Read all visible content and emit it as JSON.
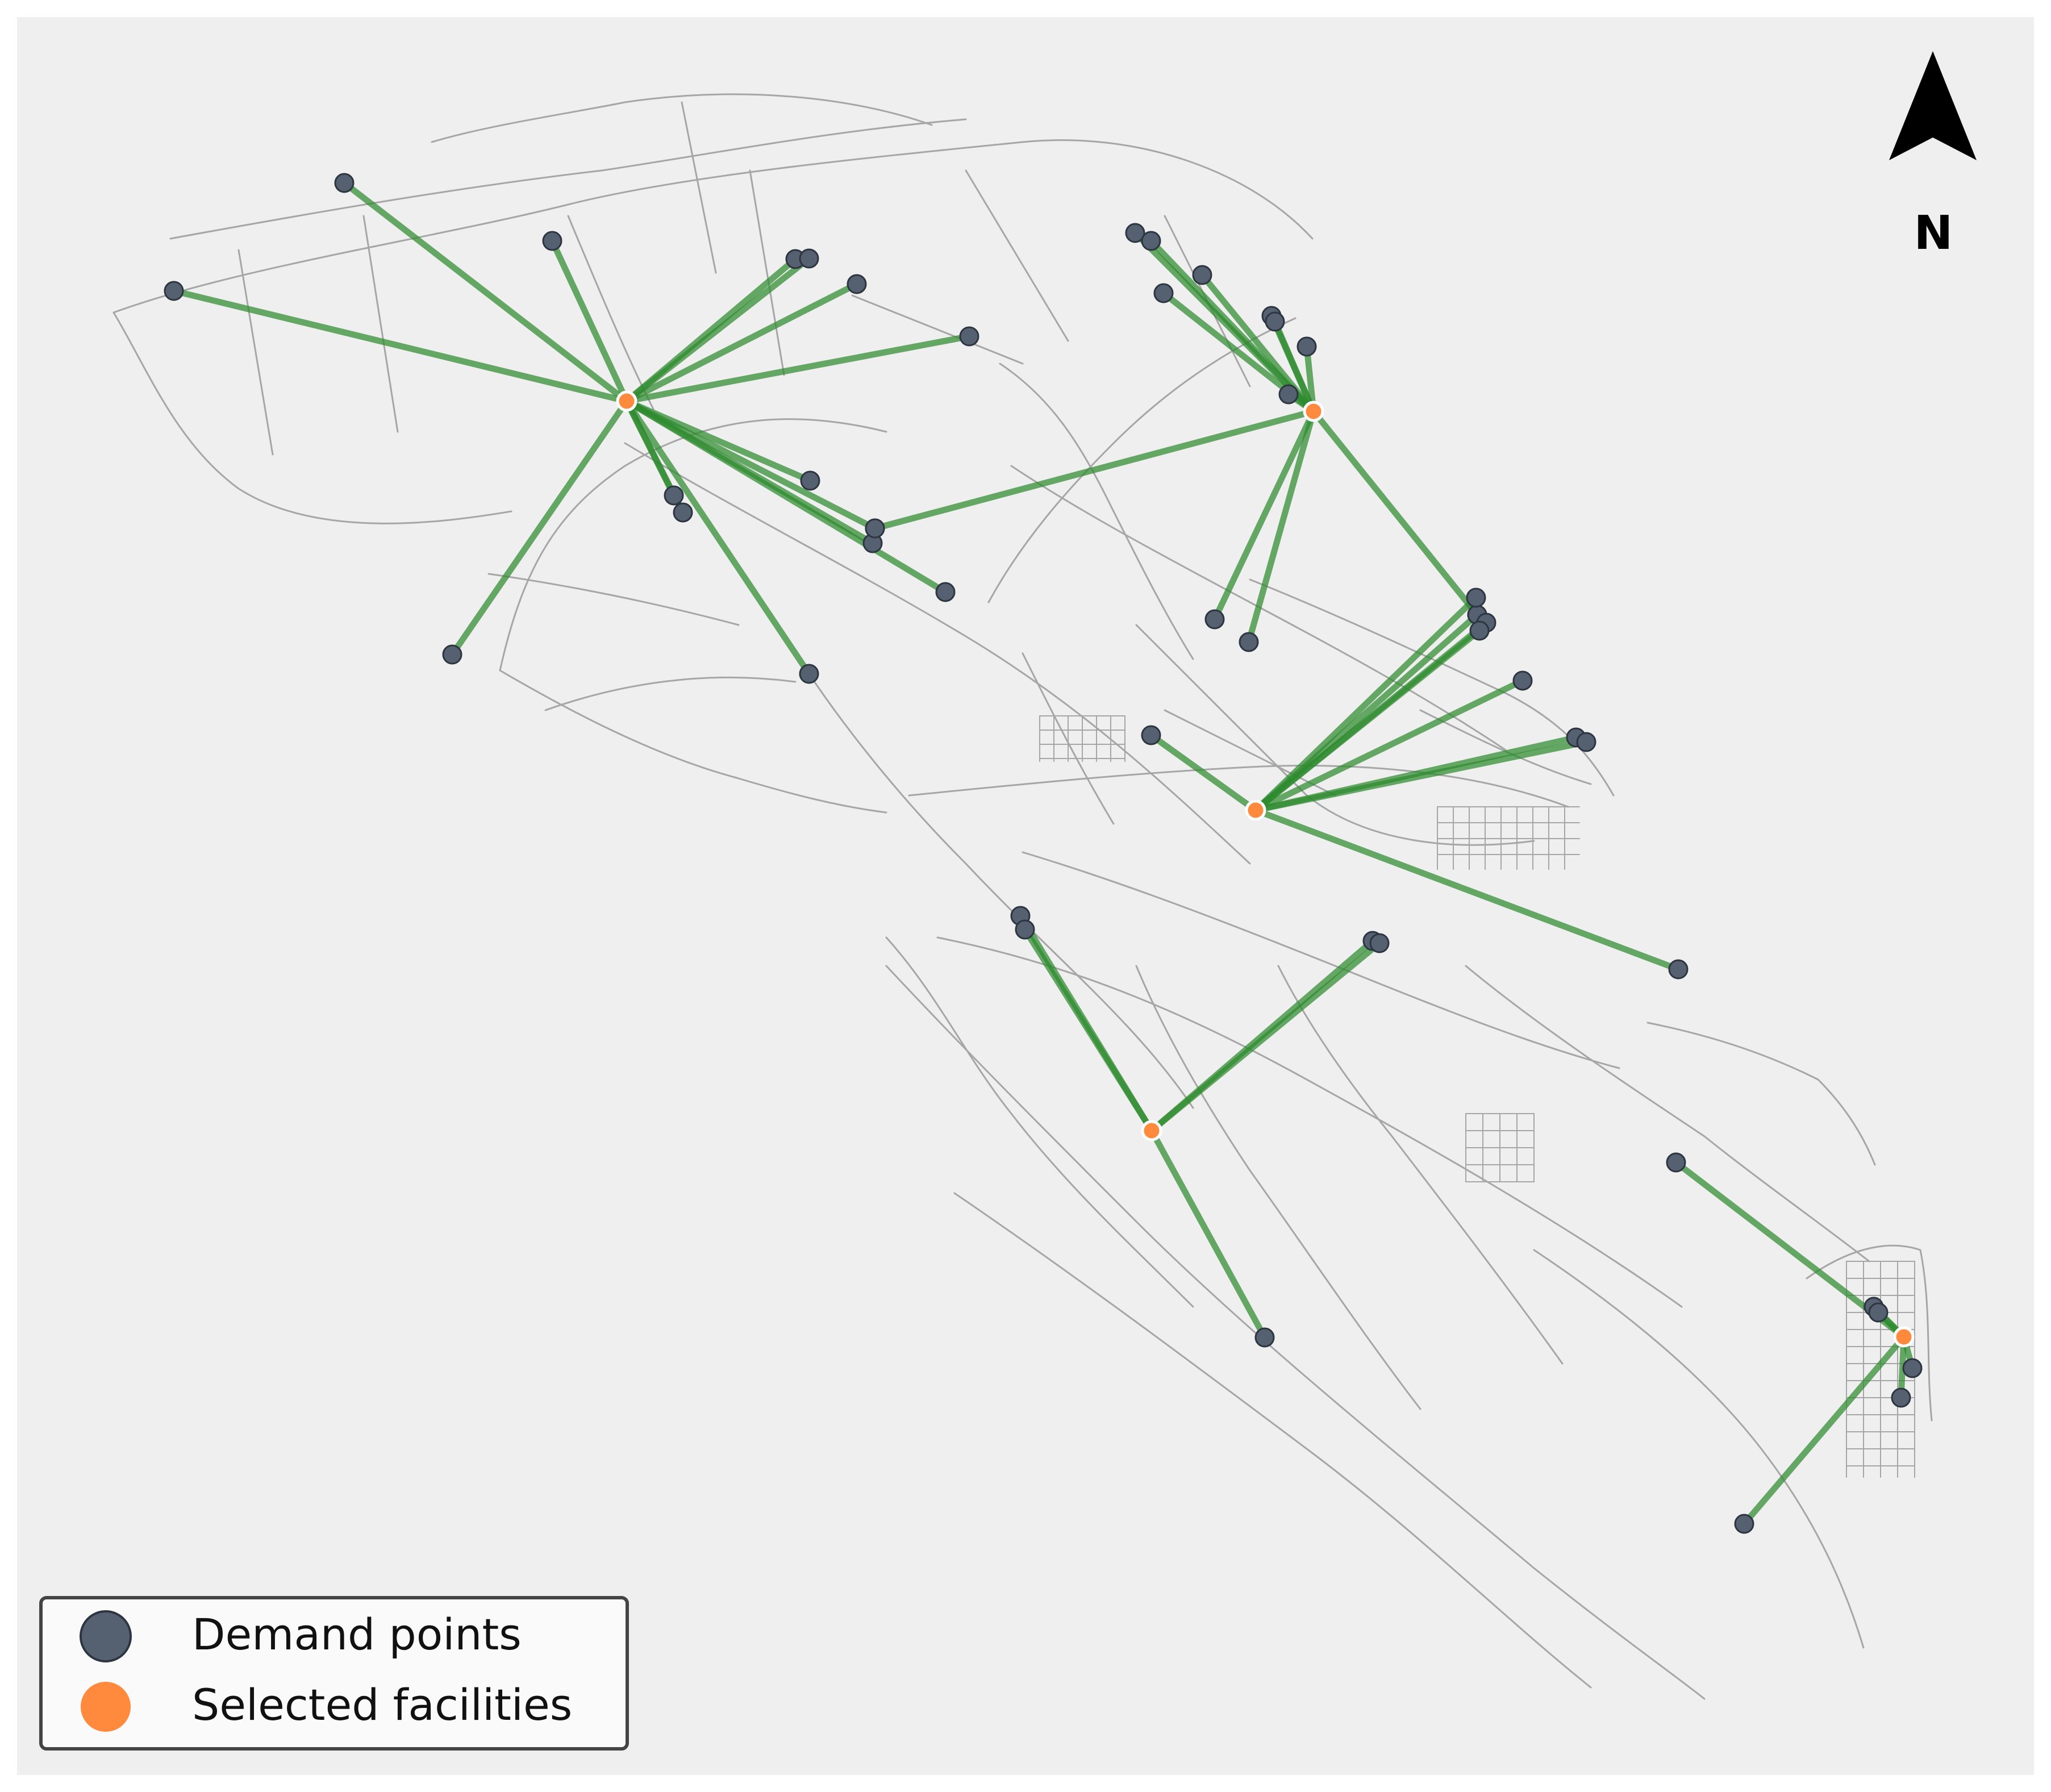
{
  "north_arrow": {
    "label": "N"
  },
  "legend": {
    "items": [
      {
        "label": "Demand points",
        "color": "#556170"
      },
      {
        "label": "Selected facilities",
        "color": "#ff8a3d"
      }
    ]
  },
  "colors": {
    "background": "#efefef",
    "road": "#a6a6a6",
    "assignment_line": "#2e8b2e",
    "demand_point": "#556170",
    "facility": "#ff8a3d"
  }
}
